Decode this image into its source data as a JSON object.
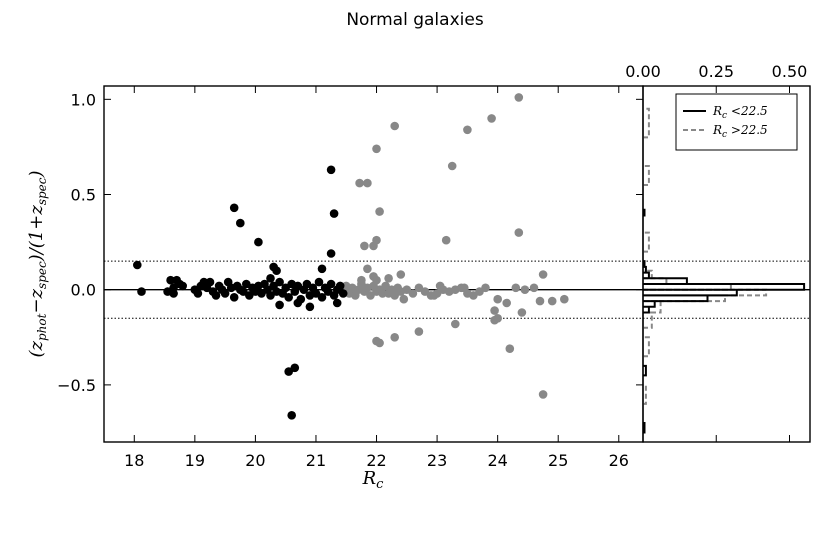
{
  "chart_data": {
    "title": "Normal galaxies",
    "main": {
      "type": "scatter",
      "xlabel": "R_c",
      "ylabel": "(z_phot − z_spec)/(1 + z_spec)",
      "xlim": [
        17.5,
        26.4
      ],
      "ylim": [
        -0.8,
        1.07
      ],
      "xticks": [
        18,
        19,
        20,
        21,
        22,
        23,
        24,
        25,
        26
      ],
      "yticks": [
        -0.5,
        0.0,
        0.5,
        1.0
      ],
      "ytick_labels": [
        "−0.5",
        "0.0",
        "0.5",
        "1.0"
      ],
      "reference_lines": [
        {
          "y": 0.0,
          "style": "solid"
        },
        {
          "y": 0.15,
          "style": "dotted"
        },
        {
          "y": -0.15,
          "style": "dotted"
        }
      ],
      "series": [
        {
          "color": "#000000",
          "points": [
            [
              18.05,
              0.13
            ],
            [
              18.12,
              -0.01
            ],
            [
              18.6,
              0.05
            ],
            [
              18.65,
              0.01
            ],
            [
              18.7,
              0.05
            ],
            [
              18.75,
              0.03
            ],
            [
              18.8,
              0.02
            ],
            [
              18.55,
              -0.01
            ],
            [
              18.65,
              -0.02
            ],
            [
              19.0,
              0.0
            ],
            [
              19.05,
              -0.02
            ],
            [
              19.1,
              0.02
            ],
            [
              19.15,
              0.04
            ],
            [
              19.2,
              0.01
            ],
            [
              19.25,
              0.04
            ],
            [
              19.3,
              -0.01
            ],
            [
              19.35,
              -0.03
            ],
            [
              19.4,
              0.02
            ],
            [
              19.45,
              0.0
            ],
            [
              19.5,
              -0.02
            ],
            [
              19.55,
              0.04
            ],
            [
              19.6,
              0.01
            ],
            [
              19.65,
              -0.04
            ],
            [
              19.7,
              0.02
            ],
            [
              19.75,
              0.0
            ],
            [
              19.8,
              -0.01
            ],
            [
              19.85,
              0.03
            ],
            [
              19.9,
              -0.03
            ],
            [
              19.95,
              0.01
            ],
            [
              20.0,
              -0.01
            ],
            [
              20.05,
              0.02
            ],
            [
              20.1,
              -0.02
            ],
            [
              20.15,
              0.03
            ],
            [
              20.2,
              0.0
            ],
            [
              20.25,
              -0.03
            ],
            [
              20.3,
              0.02
            ],
            [
              20.35,
              -0.01
            ],
            [
              20.4,
              0.04
            ],
            [
              20.45,
              -0.02
            ],
            [
              20.5,
              0.01
            ],
            [
              20.55,
              -0.04
            ],
            [
              20.6,
              0.03
            ],
            [
              20.65,
              -0.01
            ],
            [
              20.7,
              0.02
            ],
            [
              20.75,
              -0.05
            ],
            [
              20.8,
              0.0
            ],
            [
              20.85,
              0.03
            ],
            [
              20.9,
              -0.03
            ],
            [
              20.95,
              0.01
            ],
            [
              21.0,
              -0.02
            ],
            [
              21.05,
              0.04
            ],
            [
              21.1,
              -0.04
            ],
            [
              21.15,
              0.01
            ],
            [
              21.2,
              -0.01
            ],
            [
              21.25,
              0.03
            ],
            [
              21.3,
              -0.03
            ],
            [
              21.35,
              0.0
            ],
            [
              21.4,
              0.02
            ],
            [
              21.45,
              -0.02
            ],
            [
              19.65,
              0.43
            ],
            [
              19.75,
              0.35
            ],
            [
              20.05,
              0.25
            ],
            [
              20.3,
              0.12
            ],
            [
              20.35,
              0.1
            ],
            [
              20.25,
              0.06
            ],
            [
              21.25,
              0.63
            ],
            [
              21.3,
              0.4
            ],
            [
              21.25,
              0.19
            ],
            [
              21.1,
              0.11
            ],
            [
              20.55,
              -0.43
            ],
            [
              20.65,
              -0.41
            ],
            [
              20.6,
              -0.66
            ],
            [
              20.4,
              -0.08
            ],
            [
              20.9,
              -0.09
            ],
            [
              20.7,
              -0.07
            ],
            [
              21.35,
              -0.07
            ]
          ]
        },
        {
          "color": "#888888",
          "points": [
            [
              21.5,
              0.02
            ],
            [
              21.55,
              -0.02
            ],
            [
              21.6,
              0.01
            ],
            [
              21.65,
              -0.03
            ],
            [
              21.7,
              0.0
            ],
            [
              21.75,
              0.03
            ],
            [
              21.8,
              -0.01
            ],
            [
              21.85,
              0.01
            ],
            [
              21.9,
              -0.03
            ],
            [
              21.95,
              0.02
            ],
            [
              22.0,
              -0.01
            ],
            [
              22.05,
              0.0
            ],
            [
              22.1,
              -0.02
            ],
            [
              22.15,
              0.02
            ],
            [
              22.2,
              -0.02
            ],
            [
              22.25,
              0.0
            ],
            [
              22.3,
              -0.03
            ],
            [
              22.35,
              0.01
            ],
            [
              22.4,
              -0.01
            ],
            [
              22.5,
              0.0
            ],
            [
              22.6,
              -0.02
            ],
            [
              22.7,
              0.01
            ],
            [
              22.8,
              -0.01
            ],
            [
              22.9,
              -0.03
            ],
            [
              23.0,
              -0.02
            ],
            [
              23.1,
              0.0
            ],
            [
              23.2,
              -0.01
            ],
            [
              23.3,
              0.0
            ],
            [
              23.4,
              0.01
            ],
            [
              23.5,
              -0.02
            ],
            [
              23.6,
              -0.03
            ],
            [
              23.7,
              -0.01
            ],
            [
              23.8,
              0.01
            ],
            [
              24.3,
              0.01
            ],
            [
              22.0,
              0.05
            ],
            [
              22.2,
              0.06
            ],
            [
              22.4,
              0.08
            ],
            [
              21.85,
              0.11
            ],
            [
              21.95,
              0.07
            ],
            [
              21.75,
              0.05
            ],
            [
              21.85,
              0.56
            ],
            [
              21.72,
              0.56
            ],
            [
              22.0,
              0.74
            ],
            [
              22.3,
              0.86
            ],
            [
              23.25,
              0.65
            ],
            [
              23.5,
              0.84
            ],
            [
              23.9,
              0.9
            ],
            [
              24.35,
              1.01
            ],
            [
              22.05,
              0.41
            ],
            [
              21.8,
              0.23
            ],
            [
              21.95,
              0.23
            ],
            [
              22.0,
              0.26
            ],
            [
              23.15,
              0.26
            ],
            [
              24.35,
              0.3
            ],
            [
              24.75,
              0.08
            ],
            [
              24.6,
              0.01
            ],
            [
              24.45,
              0.0
            ],
            [
              24.7,
              -0.06
            ],
            [
              24.9,
              -0.06
            ],
            [
              25.1,
              -0.05
            ],
            [
              24.0,
              -0.05
            ],
            [
              24.15,
              -0.07
            ],
            [
              23.95,
              -0.11
            ],
            [
              24.4,
              -0.12
            ],
            [
              24.0,
              -0.15
            ],
            [
              23.95,
              -0.16
            ],
            [
              23.3,
              -0.18
            ],
            [
              22.7,
              -0.22
            ],
            [
              22.3,
              -0.25
            ],
            [
              22.0,
              -0.27
            ],
            [
              22.05,
              -0.28
            ],
            [
              24.2,
              -0.31
            ],
            [
              24.75,
              -0.55
            ],
            [
              22.95,
              -0.03
            ],
            [
              23.05,
              0.02
            ],
            [
              23.45,
              0.01
            ],
            [
              22.45,
              -0.05
            ]
          ]
        }
      ]
    },
    "histogram": {
      "type": "histogram",
      "orientation": "horizontal",
      "xlim": [
        0,
        0.57
      ],
      "xticks": [
        0.0,
        0.25,
        0.5
      ],
      "xtick_labels": [
        "0.00",
        "0.25",
        "0.50"
      ],
      "series": [
        {
          "name": "R_c <22.5",
          "color": "#000000",
          "style": "solid",
          "bins": [
            [
              -0.75,
              -0.7,
              0.005
            ],
            [
              -0.45,
              -0.4,
              0.01
            ],
            [
              -0.12,
              -0.09,
              0.02
            ],
            [
              -0.09,
              -0.06,
              0.04
            ],
            [
              -0.06,
              -0.03,
              0.22
            ],
            [
              -0.03,
              0.0,
              0.32
            ],
            [
              0.0,
              0.03,
              0.55
            ],
            [
              0.03,
              0.06,
              0.15
            ],
            [
              0.06,
              0.09,
              0.02
            ],
            [
              0.09,
              0.12,
              0.01
            ],
            [
              0.12,
              0.15,
              0.005
            ],
            [
              0.39,
              0.42,
              0.005
            ]
          ]
        },
        {
          "name": "R_c >22.5",
          "color": "#888888",
          "style": "dashed",
          "bins": [
            [
              -0.6,
              -0.5,
              0.01
            ],
            [
              -0.35,
              -0.25,
              0.02
            ],
            [
              -0.2,
              -0.12,
              0.03
            ],
            [
              -0.12,
              -0.06,
              0.06
            ],
            [
              -0.06,
              -0.03,
              0.28
            ],
            [
              -0.03,
              0.0,
              0.42
            ],
            [
              0.0,
              0.03,
              0.3
            ],
            [
              0.03,
              0.06,
              0.08
            ],
            [
              0.06,
              0.1,
              0.03
            ],
            [
              0.2,
              0.3,
              0.02
            ],
            [
              0.55,
              0.65,
              0.02
            ],
            [
              0.8,
              0.95,
              0.02
            ]
          ]
        }
      ],
      "legend": {
        "position": "top-right"
      }
    }
  }
}
